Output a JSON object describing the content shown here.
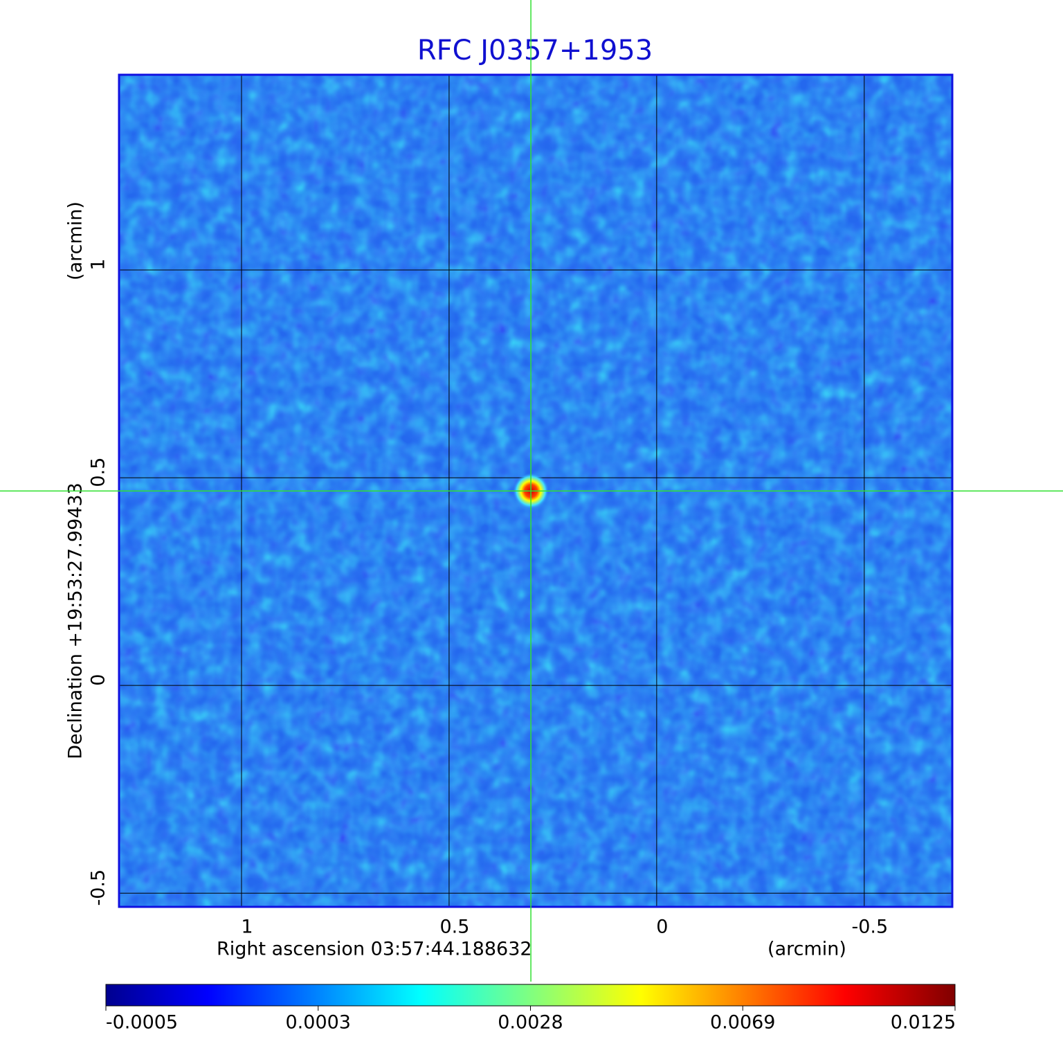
{
  "chart_data": {
    "type": "image",
    "title": "RFC J0357+1953",
    "x_label": "Right ascension  03:57:44.188632",
    "x_unit": "(arcmin)",
    "y_label": "Declination  +19:53:27.99433",
    "y_unit": "(arcmin)",
    "xlim": [
      1.295,
      -0.712
    ],
    "ylim": [
      -0.533,
      1.47
    ],
    "xticks": [
      1.0,
      0.5,
      0.0,
      -0.5
    ],
    "yticks": [
      1.0,
      0.5,
      0.0,
      -0.5
    ],
    "grid": true,
    "source": {
      "x": 0.303,
      "y": 0.468,
      "peak": 0.0125
    },
    "colorbar": {
      "lim": [
        -0.0005,
        0.0125
      ],
      "ticks": [
        -0.0005,
        0.0003,
        0.0028,
        0.0069,
        0.0125
      ]
    }
  }
}
